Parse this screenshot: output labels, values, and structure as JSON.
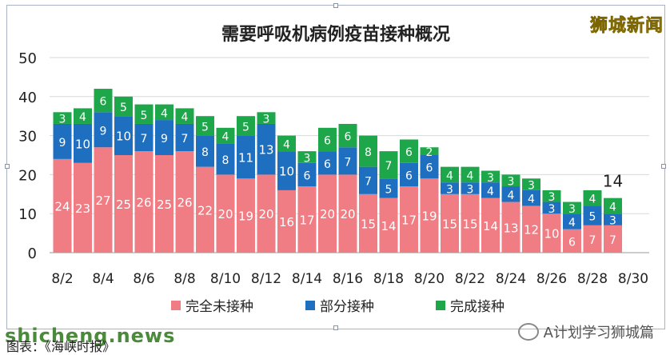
{
  "brand": "狮城新闻",
  "watermark": "shicheng.news",
  "account": "A计划学习狮城篇",
  "source": "图表：《海峡时报》",
  "chart_data": {
    "type": "bar",
    "stacked": true,
    "title": "需要呼吸机病例疫苗接种概况",
    "categories": [
      "8/2",
      "8/3",
      "8/4",
      "8/5",
      "8/6",
      "8/7",
      "8/8",
      "8/9",
      "8/10",
      "8/11",
      "8/12",
      "8/13",
      "8/14",
      "8/15",
      "8/16",
      "8/17",
      "8/18",
      "8/19",
      "8/20",
      "8/21",
      "8/22",
      "8/23",
      "8/24",
      "8/25",
      "8/26",
      "8/27",
      "8/28",
      "8/29"
    ],
    "x_tick_labels": [
      "8/2",
      "8/4",
      "8/6",
      "8/8",
      "8/10",
      "8/12",
      "8/14",
      "8/16",
      "8/18",
      "8/20",
      "8/22",
      "8/24",
      "8/26",
      "8/28",
      "8/30"
    ],
    "series": [
      {
        "name": "完全未接种",
        "color": "#f07c84",
        "values": [
          24,
          23,
          27,
          25,
          26,
          25,
          26,
          22,
          20,
          19,
          20,
          16,
          17,
          20,
          20,
          15,
          14,
          17,
          19,
          15,
          15,
          14,
          13,
          12,
          10,
          6,
          7,
          7
        ]
      },
      {
        "name": "部分接种",
        "color": "#1f6fc0",
        "values": [
          9,
          10,
          9,
          10,
          7,
          9,
          7,
          8,
          8,
          11,
          13,
          10,
          6,
          6,
          7,
          7,
          5,
          6,
          6,
          3,
          3,
          4,
          4,
          4,
          3,
          4,
          5,
          3
        ]
      },
      {
        "name": "完成接种",
        "color": "#1ea64a",
        "values": [
          3,
          4,
          6,
          5,
          5,
          4,
          4,
          5,
          4,
          5,
          3,
          4,
          3,
          6,
          6,
          8,
          7,
          6,
          2,
          4,
          4,
          3,
          3,
          3,
          3,
          3,
          4,
          4
        ]
      }
    ],
    "annotation": {
      "category": "8/29",
      "text": "14"
    },
    "ylim": [
      0,
      50
    ],
    "yticks": [
      0,
      10,
      20,
      30,
      40,
      50
    ],
    "grid": true,
    "legend": "bottom"
  }
}
